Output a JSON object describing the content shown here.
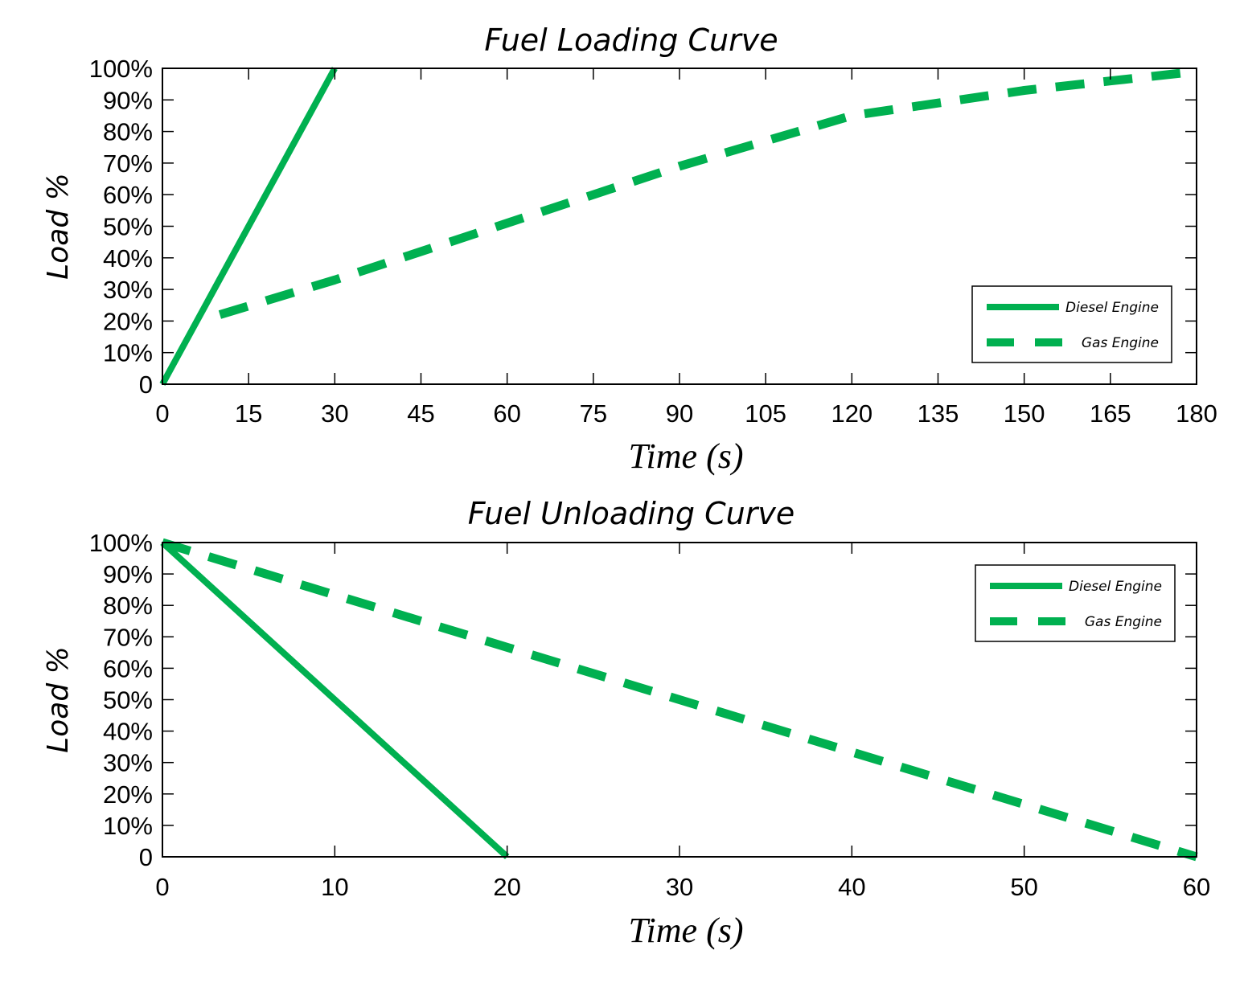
{
  "colors": {
    "series": "#00b050",
    "axis": "#000000",
    "background": "#ffffff"
  },
  "chart_data": [
    {
      "type": "line",
      "title": "Fuel Loading Curve",
      "xlabel": "Time (s)",
      "ylabel": "Load %",
      "xlim": [
        0,
        180
      ],
      "ylim": [
        0,
        100
      ],
      "xticks": [
        0,
        15,
        30,
        45,
        60,
        75,
        90,
        105,
        120,
        135,
        150,
        165,
        180
      ],
      "xtick_labels": [
        "0",
        "15",
        "30",
        "45",
        "60",
        "75",
        "90",
        "105",
        "120",
        "135",
        "150",
        "165",
        "180"
      ],
      "yticks": [
        0,
        10,
        20,
        30,
        40,
        50,
        60,
        70,
        80,
        90,
        100
      ],
      "ytick_labels": [
        "0",
        "10%",
        "20%",
        "30%",
        "40%",
        "50%",
        "60%",
        "70%",
        "80%",
        "90%",
        "100%"
      ],
      "legend_position": "lower-right",
      "series": [
        {
          "name": "Diesel Engine",
          "style": "solid",
          "x": [
            0,
            30
          ],
          "y": [
            0,
            100
          ]
        },
        {
          "name": "Gas Engine",
          "style": "dashed",
          "x": [
            10,
            30,
            60,
            90,
            105,
            120,
            135,
            150,
            165,
            180
          ],
          "y": [
            22,
            33,
            51,
            69,
            77,
            85,
            89,
            93,
            96,
            99
          ]
        }
      ]
    },
    {
      "type": "line",
      "title": "Fuel Unloading Curve",
      "xlabel": "Time (s)",
      "ylabel": "Load %",
      "xlim": [
        0,
        60
      ],
      "ylim": [
        0,
        100
      ],
      "xticks": [
        0,
        10,
        20,
        30,
        40,
        50,
        60
      ],
      "xtick_labels": [
        "0",
        "10",
        "20",
        "30",
        "40",
        "50",
        "60"
      ],
      "yticks": [
        0,
        10,
        20,
        30,
        40,
        50,
        60,
        70,
        80,
        90,
        100
      ],
      "ytick_labels": [
        "0",
        "10%",
        "20%",
        "30%",
        "40%",
        "50%",
        "60%",
        "70%",
        "80%",
        "90%",
        "100%"
      ],
      "legend_position": "upper-right",
      "series": [
        {
          "name": "Diesel Engine",
          "style": "solid",
          "x": [
            0,
            20
          ],
          "y": [
            100,
            0
          ]
        },
        {
          "name": "Gas Engine",
          "style": "dashed",
          "x": [
            0,
            60
          ],
          "y": [
            100,
            0
          ]
        }
      ]
    }
  ]
}
